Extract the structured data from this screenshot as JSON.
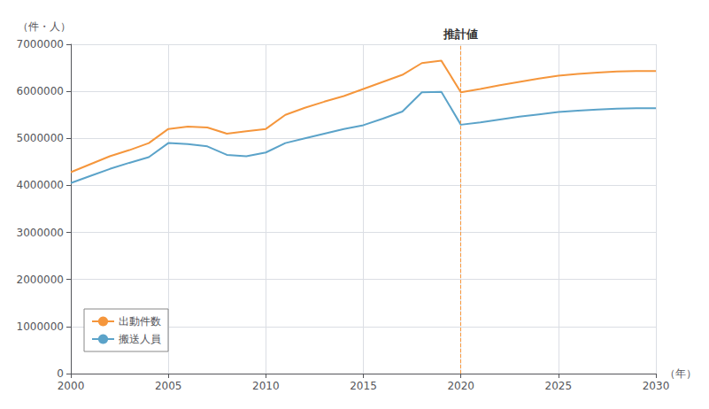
{
  "chart_data": {
    "type": "line",
    "x_label": "（年）",
    "y_label": "（件・人）",
    "xlim": [
      2000,
      2030
    ],
    "xticks": [
      2000,
      2005,
      2010,
      2015,
      2020,
      2025,
      2030
    ],
    "ylim": [
      0,
      7000000
    ],
    "yticks": [
      0,
      1000000,
      2000000,
      3000000,
      4000000,
      5000000,
      6000000,
      7000000
    ],
    "grid": true,
    "legend": "lower left",
    "annotations": [
      {
        "text": "推計値",
        "x": 2020
      }
    ],
    "x": [
      2000,
      2001,
      2002,
      2003,
      2004,
      2005,
      2006,
      2007,
      2008,
      2009,
      2010,
      2011,
      2012,
      2013,
      2014,
      2015,
      2016,
      2017,
      2018,
      2019,
      2020,
      2021,
      2022,
      2023,
      2024,
      2025,
      2026,
      2027,
      2028,
      2029,
      2030
    ],
    "series": [
      {
        "name": "出動件数",
        "color": "#f5963c",
        "values": [
          4280000,
          4450000,
          4620000,
          4750000,
          4900000,
          5200000,
          5250000,
          5230000,
          5100000,
          5150000,
          5200000,
          5500000,
          5650000,
          5780000,
          5900000,
          6050000,
          6200000,
          6350000,
          6600000,
          6650000,
          5980000,
          6050000,
          6130000,
          6200000,
          6270000,
          6330000,
          6370000,
          6400000,
          6420000,
          6430000,
          6430000
        ]
      },
      {
        "name": "搬送人員",
        "color": "#5ba3c9",
        "values": [
          4050000,
          4200000,
          4350000,
          4480000,
          4600000,
          4900000,
          4880000,
          4830000,
          4650000,
          4620000,
          4700000,
          4900000,
          5000000,
          5100000,
          5200000,
          5280000,
          5420000,
          5570000,
          5980000,
          5990000,
          5290000,
          5340000,
          5400000,
          5460000,
          5510000,
          5560000,
          5590000,
          5610000,
          5630000,
          5640000,
          5640000
        ]
      }
    ]
  }
}
